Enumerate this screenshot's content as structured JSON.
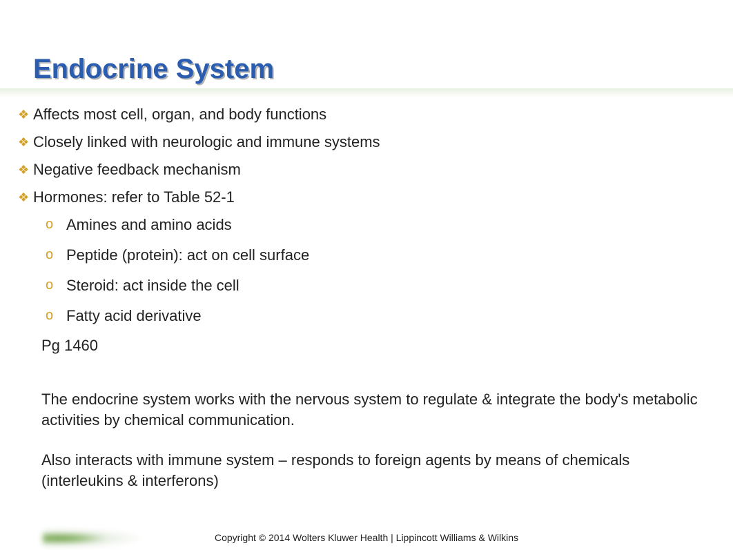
{
  "title": "Endocrine System",
  "bullets": [
    "Affects most cell, organ, and body functions",
    "Closely linked with neurologic and immune systems",
    "Negative feedback mechanism",
    "Hormones: refer to Table 52-1"
  ],
  "sub_bullets": [
    "Amines and amino acids",
    "Peptide (protein): act on cell surface",
    "Steroid: act inside the cell",
    "Fatty acid derivative"
  ],
  "page_ref": "Pg 1460",
  "paragraph1": "The endocrine system works with the nervous system to regulate & integrate the body's metabolic activities by chemical communication.",
  "paragraph2": "Also interacts with immune system – responds to foreign agents by means of chemicals (interleukins & interferons)",
  "footer": "Copyright © 2014 Wolters Kluwer Health | Lippincott Williams & Wilkins",
  "styling": {
    "title_color": "#2a5db0",
    "title_fontsize": 40,
    "bullet_color": "#d4a028",
    "body_fontsize": 22,
    "text_color": "#222222",
    "background": "#ffffff",
    "divider_gradient": [
      "#e8f0e0",
      "#ffffff"
    ],
    "diamond_glyph": "❖",
    "sub_glyph": "o"
  }
}
